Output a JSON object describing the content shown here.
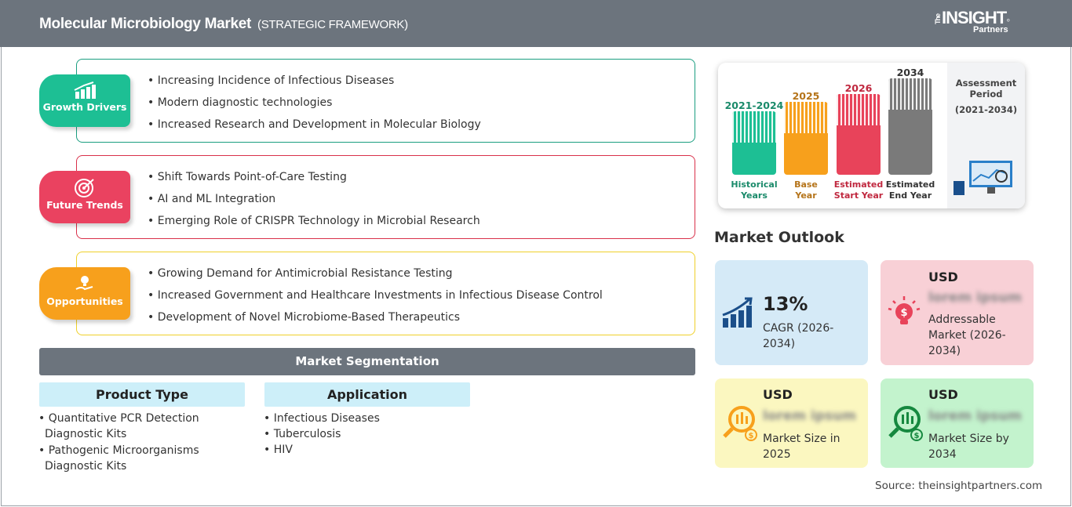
{
  "header": {
    "title": "Molecular Microbiology Market",
    "subtitle": "(STRATEGIC FRAMEWORK)",
    "logo_text": "The INSIGHT Partners"
  },
  "sections": [
    {
      "label": "Growth Drivers",
      "color": "#1dbf94",
      "border": "#1a9e80",
      "items": [
        "Increasing Incidence of Infectious Diseases",
        "Modern diagnostic technologies",
        "Increased Research and Development in Molecular Biology"
      ]
    },
    {
      "label": "Future Trends",
      "color": "#ea4260",
      "border": "#d9304a",
      "items": [
        "Shift Towards Point-of-Care Testing",
        "AI and ML Integration",
        "Emerging Role of CRISPR Technology in Microbial Research"
      ]
    },
    {
      "label": "Opportunities",
      "color": "#f7a01c",
      "border": "#efd02a",
      "items": [
        "Growing Demand for Antimicrobial Resistance Testing",
        "Increased Government and Healthcare Investments in Infectious Disease Control",
        "Development of Novel Microbiome-Based Therapeutics"
      ]
    }
  ],
  "segmentation": {
    "title": "Market Segmentation",
    "columns": [
      {
        "header": "Product Type",
        "items": [
          "Quantitative PCR Detection Diagnostic Kits",
          "Pathogenic Microorganisms Diagnostic Kits"
        ]
      },
      {
        "header": "Application",
        "items": [
          "Infectious Diseases",
          "Tuberculosis",
          "HIV"
        ]
      }
    ]
  },
  "timeline": {
    "bars": [
      {
        "year": "2021-2024",
        "label1": "Historical",
        "label2": "Years",
        "color": "#1dbf94",
        "text_color": "#1a8a6a"
      },
      {
        "year": "2025",
        "label1": "Base",
        "label2": "Year",
        "color": "#f7a01c",
        "text_color": "#b5741a"
      },
      {
        "year": "2026",
        "label1": "Estimated",
        "label2": "Start Year",
        "color": "#e8435a",
        "text_color": "#c0283f"
      },
      {
        "year": "2034",
        "label1": "Estimated",
        "label2": "End Year",
        "color": "#7a7a7a",
        "text_color": "#333333"
      }
    ],
    "assessment_label": "Assessment Period",
    "assessment_range": "(2021-2034)"
  },
  "outlook": {
    "title": "Market Outlook",
    "cards": [
      {
        "value": "13%",
        "label": "CAGR (2026-2034)",
        "bg": "#d5eaf7"
      },
      {
        "currency": "USD",
        "value": "lorem ipsum",
        "label": "Addressable Market (2026-2034)",
        "bg": "#f8d0d6"
      },
      {
        "currency": "USD",
        "value": "lorem ipsum",
        "label": "Market Size in 2025",
        "bg": "#fbf7c0"
      },
      {
        "currency": "USD",
        "value": "lorem ipsum",
        "label": "Market Size by 2034",
        "bg": "#c3f3cd"
      }
    ]
  },
  "source": "Source: theinsightpartners.com"
}
